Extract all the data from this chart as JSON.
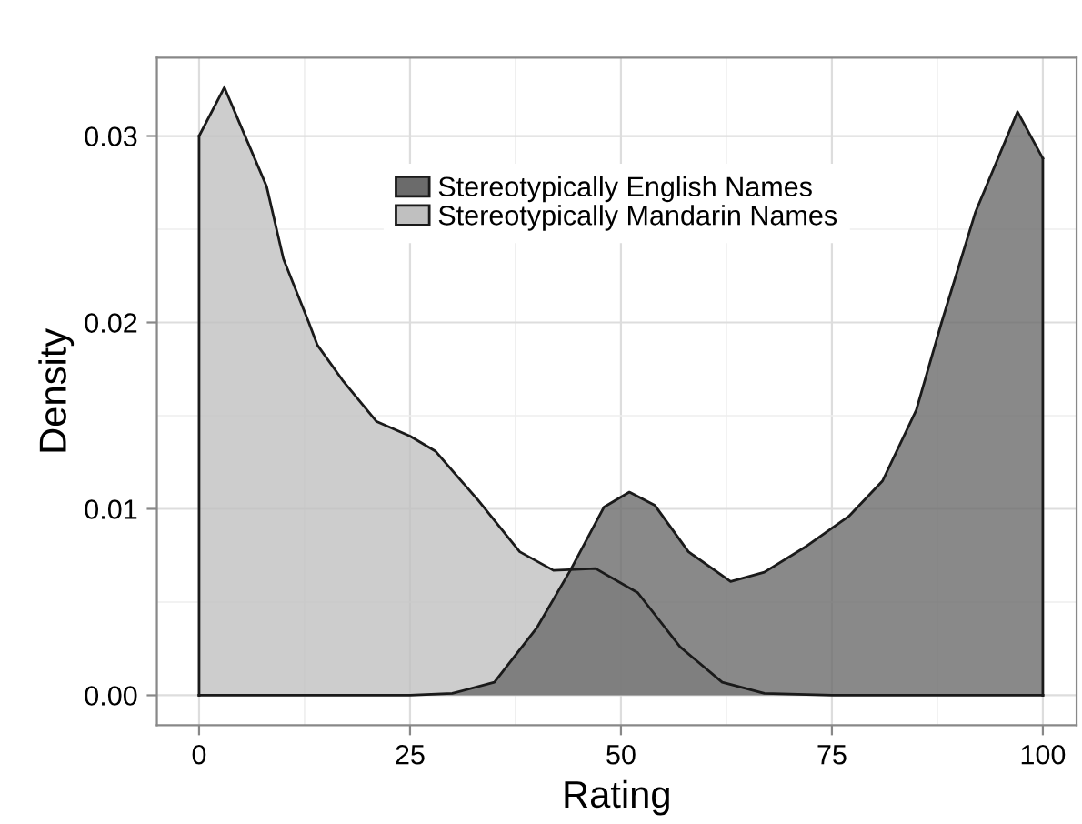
{
  "chart_data": {
    "type": "area",
    "xlabel": "Rating",
    "ylabel": "Density",
    "xlim": [
      -5,
      104
    ],
    "xticks": [
      0,
      25,
      50,
      75,
      100
    ],
    "ylim": [
      -0.0016,
      0.0342
    ],
    "yticks": [
      {
        "value": 0,
        "label": "0.00"
      },
      {
        "value": 0.01,
        "label": "0.01"
      },
      {
        "value": 0.02,
        "label": "0.02"
      },
      {
        "value": 0.03,
        "label": "0.03"
      }
    ],
    "grid": true,
    "legend": "top",
    "series": [
      {
        "name": "Stereotypically English Names",
        "color": "#6b6b6b",
        "x": [
          0,
          25,
          30,
          35,
          40,
          44,
          48,
          51,
          54,
          58,
          63,
          67,
          72,
          77,
          81,
          85,
          88,
          92,
          97,
          100
        ],
        "values": [
          0,
          0,
          0.0001,
          0.0007,
          0.0036,
          0.0067,
          0.0101,
          0.0109,
          0.0102,
          0.0077,
          0.0061,
          0.0066,
          0.008,
          0.0096,
          0.0115,
          0.0153,
          0.02,
          0.0259,
          0.0313,
          0.0288
        ]
      },
      {
        "name": "Stereotypically Mandarin Names",
        "color": "#c0c0c0",
        "x": [
          0,
          3,
          8,
          10,
          13,
          14,
          17,
          21,
          25,
          28,
          33,
          38,
          42,
          47,
          52,
          57,
          62,
          67,
          75,
          100
        ],
        "values": [
          0.03,
          0.0326,
          0.0273,
          0.0234,
          0.02,
          0.0188,
          0.0169,
          0.0147,
          0.0139,
          0.0131,
          0.0105,
          0.0077,
          0.0067,
          0.0068,
          0.0055,
          0.0026,
          0.0007,
          0.0001,
          0,
          0
        ]
      }
    ]
  }
}
